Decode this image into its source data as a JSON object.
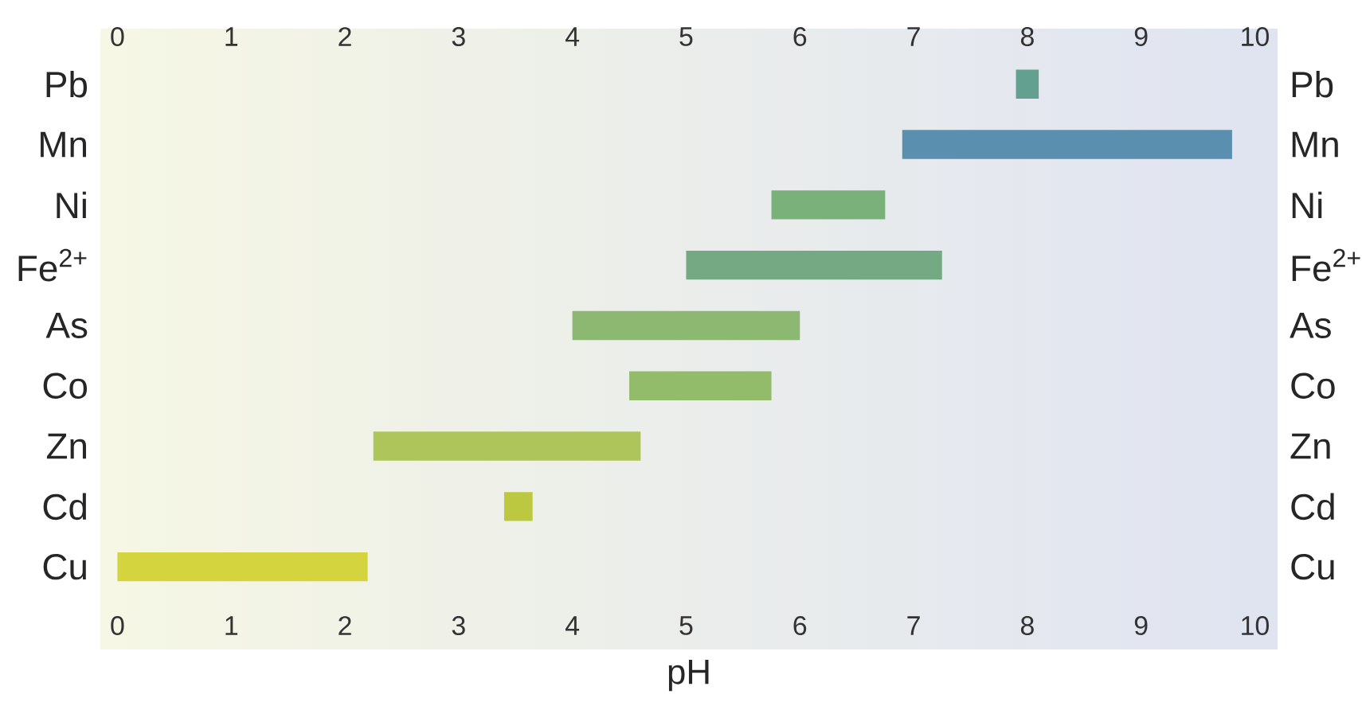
{
  "chart_data": {
    "type": "bar",
    "orientation": "horizontal",
    "xlabel": "pH",
    "categories": [
      "Pb",
      "Mn",
      "Ni",
      "Fe$^{2+}$",
      "As",
      "Co",
      "Zn",
      "Cd",
      "Cu"
    ],
    "base": [
      7.9,
      6.9,
      5.75,
      5.0,
      4.0,
      4.5,
      2.25,
      3.4,
      0
    ],
    "values": [
      0.2,
      2.9,
      1.0,
      2.25,
      2.0,
      1.25,
      2.35,
      0.25,
      2.2
    ],
    "colors": [
      "#64a090",
      "#5a8fb0",
      "#7ab07a",
      "#74a984",
      "#8cb872",
      "#93bc6a",
      "#adc55a",
      "#bcc840",
      "#d4d43e"
    ],
    "xlim": [
      -0.15,
      10.2
    ],
    "xticks": [
      0,
      1,
      2,
      3,
      4,
      5,
      6,
      7,
      8,
      9,
      10
    ],
    "x2lim": [
      -0.15,
      10.2
    ],
    "x2ticks": [
      0,
      1,
      2,
      3,
      4,
      5,
      6,
      7,
      8,
      9,
      10
    ]
  }
}
